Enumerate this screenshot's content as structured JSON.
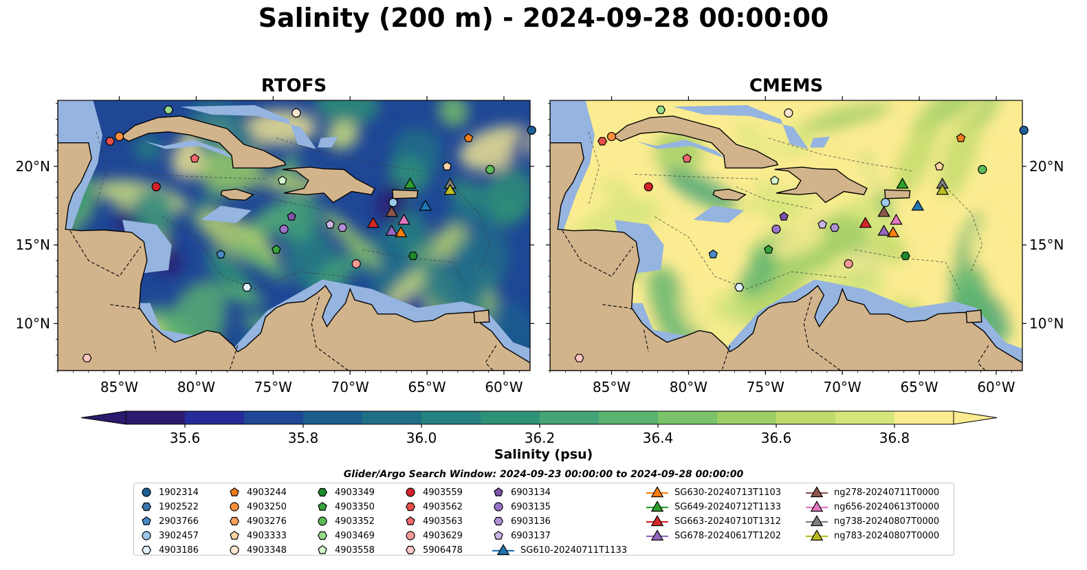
{
  "title": "Salinity (200 m) - 2024-09-28 00:00:00",
  "panels": [
    {
      "title": "RTOFS",
      "theme": "rtofs"
    },
    {
      "title": "CMEMS",
      "theme": "cmems"
    }
  ],
  "axes": {
    "lon_ticks": [
      "85°W",
      "80°W",
      "75°W",
      "70°W",
      "65°W",
      "60°W"
    ],
    "lat_ticks": [
      "20°N",
      "15°N",
      "10°N"
    ],
    "lon_range": [
      -89,
      -58.3
    ],
    "lat_range": [
      7,
      24.2
    ]
  },
  "colorbar": {
    "label": "Salinity (psu)",
    "min": 35.5,
    "max": 36.9,
    "step": 0.1,
    "ticks": [
      "35.6",
      "35.8",
      "36.0",
      "36.2",
      "36.4",
      "36.6",
      "36.8"
    ],
    "colors": [
      "#2c1a6e",
      "#252c9a",
      "#1f4796",
      "#1d5e8d",
      "#1f7087",
      "#25817f",
      "#2e9276",
      "#45a477",
      "#5cb36f",
      "#7ac368",
      "#9dcd66",
      "#c0db6c",
      "#d6e67c",
      "#fbec91"
    ],
    "over_color": "#fbec91",
    "under_color": "#2c1a6e"
  },
  "search_window": "Glider/Argo Search Window: 2024-09-23 00:00:00 to 2024-09-28 00:00:00",
  "colors": {
    "land": "#d2b48c",
    "shelf": "#95b4df",
    "coastline": "#000000"
  },
  "legend": [
    {
      "label": "1902314",
      "marker": "circle",
      "color": "#1f5f96",
      "lon": -58.2,
      "lat": 22.3
    },
    {
      "label": "1902522",
      "marker": "hexagon",
      "color": "#3b76ad",
      "lon": null,
      "lat": null
    },
    {
      "label": "2903766",
      "marker": "pentagon",
      "color": "#4a8ac7",
      "lon": -78.4,
      "lat": 14.4
    },
    {
      "label": "3902457",
      "marker": "circle",
      "color": "#9bc8ea",
      "lon": -67.2,
      "lat": 17.7
    },
    {
      "label": "4903186",
      "marker": "hexagon",
      "color": "#dff0fa",
      "lon": -76.7,
      "lat": 12.3
    },
    {
      "label": "4903244",
      "marker": "pentagon",
      "color": "#ef7d1a",
      "lon": -62.3,
      "lat": 21.8
    },
    {
      "label": "4903250",
      "marker": "circle",
      "color": "#fd8f3b",
      "lon": -85.0,
      "lat": 21.9
    },
    {
      "label": "4903276",
      "marker": "hexagon",
      "color": "#fba15c",
      "lon": null,
      "lat": null
    },
    {
      "label": "4903333",
      "marker": "pentagon",
      "color": "#fdd2a5",
      "lon": -63.7,
      "lat": 20.0
    },
    {
      "label": "4903348",
      "marker": "circle",
      "color": "#fde7d0",
      "lon": -73.5,
      "lat": 23.4
    },
    {
      "label": "4903349",
      "marker": "hexagon",
      "color": "#1e8a2c",
      "lon": -65.9,
      "lat": 14.3
    },
    {
      "label": "4903350",
      "marker": "pentagon",
      "color": "#38a43c",
      "lon": -74.8,
      "lat": 14.7
    },
    {
      "label": "4903352",
      "marker": "circle",
      "color": "#5cbc55",
      "lon": -60.9,
      "lat": 19.8
    },
    {
      "label": "4903469",
      "marker": "hexagon",
      "color": "#98da8a",
      "lon": -81.8,
      "lat": 23.6
    },
    {
      "label": "4903558",
      "marker": "pentagon",
      "color": "#d4f7cc",
      "lon": -74.4,
      "lat": 19.1
    },
    {
      "label": "4903559",
      "marker": "circle",
      "color": "#d3232a",
      "lon": -82.6,
      "lat": 18.7
    },
    {
      "label": "4903562",
      "marker": "hexagon",
      "color": "#e8504a",
      "lon": -85.6,
      "lat": 21.6
    },
    {
      "label": "4903563",
      "marker": "pentagon",
      "color": "#ef6a6e",
      "lon": -80.1,
      "lat": 20.5
    },
    {
      "label": "4903629",
      "marker": "circle",
      "color": "#f59b95",
      "lon": -69.6,
      "lat": 13.8
    },
    {
      "label": "5906478",
      "marker": "hexagon",
      "color": "#fcc7c4",
      "lon": -87.1,
      "lat": 7.8
    },
    {
      "label": "6903134",
      "marker": "pentagon",
      "color": "#7d52a8",
      "lon": -73.8,
      "lat": 16.8
    },
    {
      "label": "6903135",
      "marker": "circle",
      "color": "#9a72c6",
      "lon": -74.3,
      "lat": 16.0
    },
    {
      "label": "6903136",
      "marker": "hexagon",
      "color": "#b191d6",
      "lon": -70.5,
      "lat": 16.1
    },
    {
      "label": "6903137",
      "marker": "pentagon",
      "color": "#cab6e6",
      "lon": -71.3,
      "lat": 16.3
    },
    {
      "label": "SG610-20240711T1133",
      "marker": "triangle",
      "color": "#1f77b4",
      "lon": -65.1,
      "lat": 17.5
    },
    {
      "label": "SG630-20240713T1103",
      "marker": "triangle",
      "color": "#ff7f0e",
      "lon": -66.7,
      "lat": 15.8
    },
    {
      "label": "SG649-20240712T1133",
      "marker": "triangle",
      "color": "#2ca02c",
      "lon": -66.1,
      "lat": 18.9
    },
    {
      "label": "SG663-20240710T1312",
      "marker": "triangle",
      "color": "#d62728",
      "lon": -68.5,
      "lat": 16.4
    },
    {
      "label": "SG678-20240617T1202",
      "marker": "triangle",
      "color": "#9467bd",
      "lon": -67.3,
      "lat": 15.9
    },
    {
      "label": "ng278-20240711T0000",
      "marker": "triangle",
      "color": "#8c564b",
      "lon": -67.3,
      "lat": 17.1
    },
    {
      "label": "ng656-20240613T0000",
      "marker": "triangle",
      "color": "#e377c2",
      "lon": -66.5,
      "lat": 16.6
    },
    {
      "label": "ng738-20240807T0000",
      "marker": "triangle",
      "color": "#7f7f7f",
      "lon": -63.5,
      "lat": 18.9
    },
    {
      "label": "ng783-20240807T0000",
      "marker": "triangle",
      "color": "#bcbd22",
      "lon": -63.5,
      "lat": 18.5
    }
  ]
}
